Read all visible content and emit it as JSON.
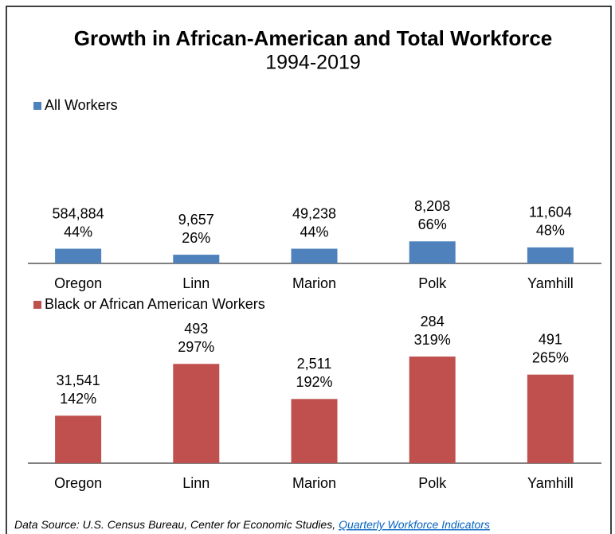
{
  "title": "Growth in African-American and Total Workforce",
  "subtitle": "1994-2019",
  "source": {
    "text": "Data Source: U.S. Census Bureau, Center for Economic Studies,",
    "link": "Quarterly Workforce Indicators"
  },
  "chart_data": [
    {
      "type": "bar",
      "categories": [
        "Oregon",
        "Linn",
        "Marion",
        "Polk",
        "Yamhill"
      ],
      "series": [
        {
          "name": "All Workers",
          "color": "#4f81bd",
          "values": [
            44,
            26,
            44,
            66,
            48
          ],
          "value_labels": [
            "44%",
            "26%",
            "44%",
            "66%",
            "48%"
          ],
          "counts": [
            584884,
            9657,
            49238,
            8208,
            11604
          ],
          "count_labels": [
            "584,884",
            "9,657",
            "49,238",
            "8,208",
            "11,604"
          ]
        }
      ]
    },
    {
      "type": "bar",
      "categories": [
        "Oregon",
        "Linn",
        "Marion",
        "Polk",
        "Yamhill"
      ],
      "series": [
        {
          "name": "Black or African American Workers",
          "color": "#c0504d",
          "values": [
            142,
            297,
            192,
            319,
            265
          ],
          "value_labels": [
            "142%",
            "297%",
            "192%",
            "319%",
            "265%"
          ],
          "counts": [
            31541,
            493,
            2511,
            284,
            491
          ],
          "count_labels": [
            "31,541",
            "493",
            "2,511",
            "284",
            "491"
          ]
        }
      ]
    }
  ]
}
